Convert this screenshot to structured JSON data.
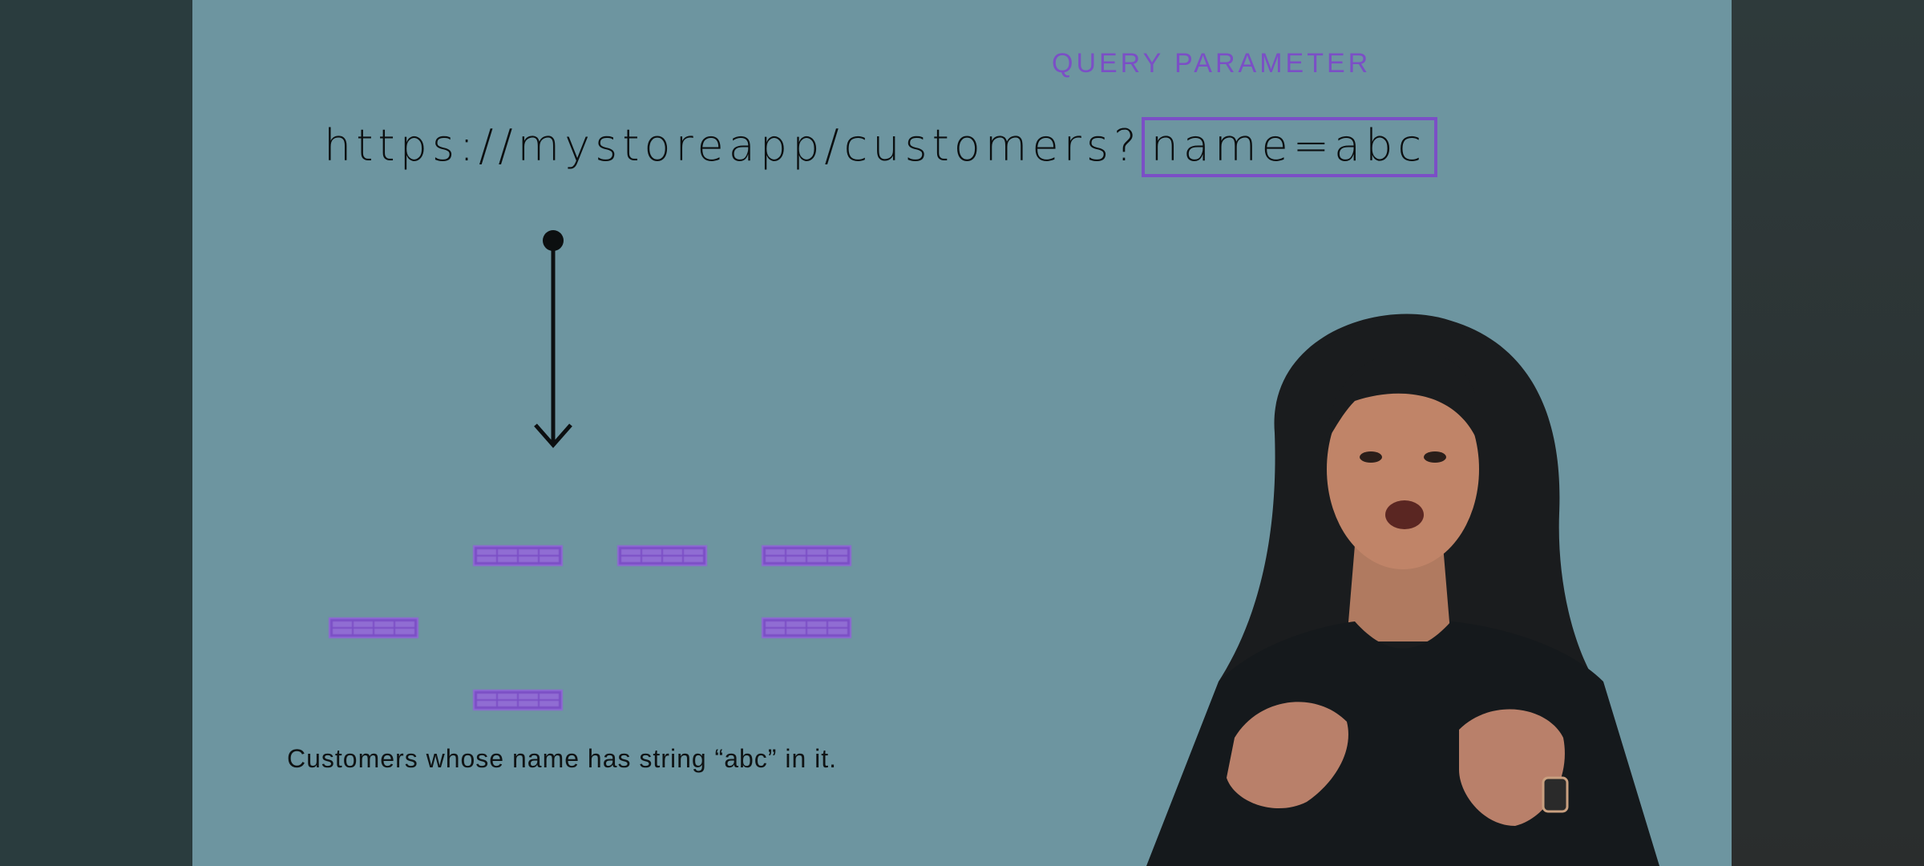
{
  "slide": {
    "query_label": "QUERY PARAMETER",
    "url_base": "https://mystoreapp/customers?",
    "url_param": "name=abc",
    "caption": "Customers whose name has string “abc” in it."
  },
  "colors": {
    "slide_background": "#6d95a0",
    "accent": "#7b4fc6",
    "text": "#0c0f10",
    "letterbox": "#2b3d3f"
  },
  "records": {
    "count": 6,
    "icon": "table-record-icon"
  }
}
